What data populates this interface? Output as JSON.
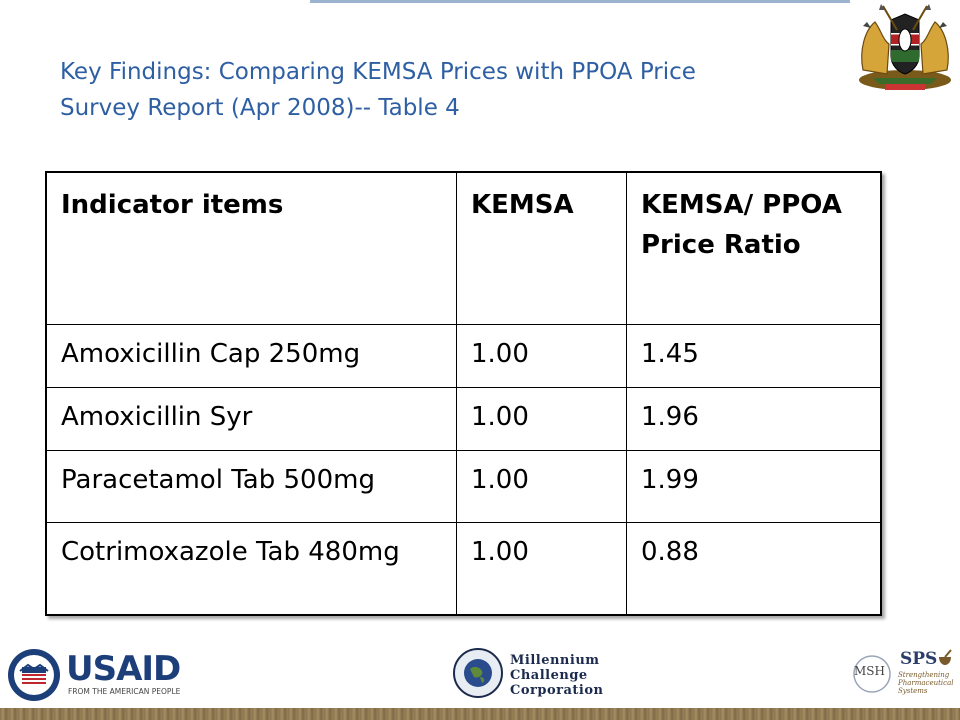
{
  "slide": {
    "title_line1": "Key Findings: Comparing KEMSA Prices with PPOA Price",
    "title_line2": "Survey Report (Apr 2008)-- Table 4"
  },
  "table": {
    "headers": [
      "Indicator items",
      "KEMSA",
      "KEMSA/ PPOA Price Ratio"
    ],
    "rows": [
      [
        "Amoxicillin Cap 250mg",
        "1.00",
        "1.45"
      ],
      [
        "Amoxicillin Syr",
        "1.00",
        "1.96"
      ],
      [
        "Paracetamol Tab 500mg",
        "1.00",
        "1.99"
      ],
      [
        "Cotrimoxazole Tab 480mg",
        "1.00",
        "0.88"
      ]
    ]
  },
  "logos": {
    "usaid_name": "USAID",
    "usaid_tagline": "FROM THE AMERICAN PEOPLE",
    "mcc_line1": "Millennium",
    "mcc_line2": "Challenge",
    "mcc_line3": "Corporation",
    "msh": "MSH",
    "sps": "SPS",
    "sps_line1": "Strengthening",
    "sps_line2": "Pharmaceutical",
    "sps_line3": "Systems"
  },
  "colors": {
    "title": "#2e5fa3",
    "footer": "#8a7450"
  }
}
